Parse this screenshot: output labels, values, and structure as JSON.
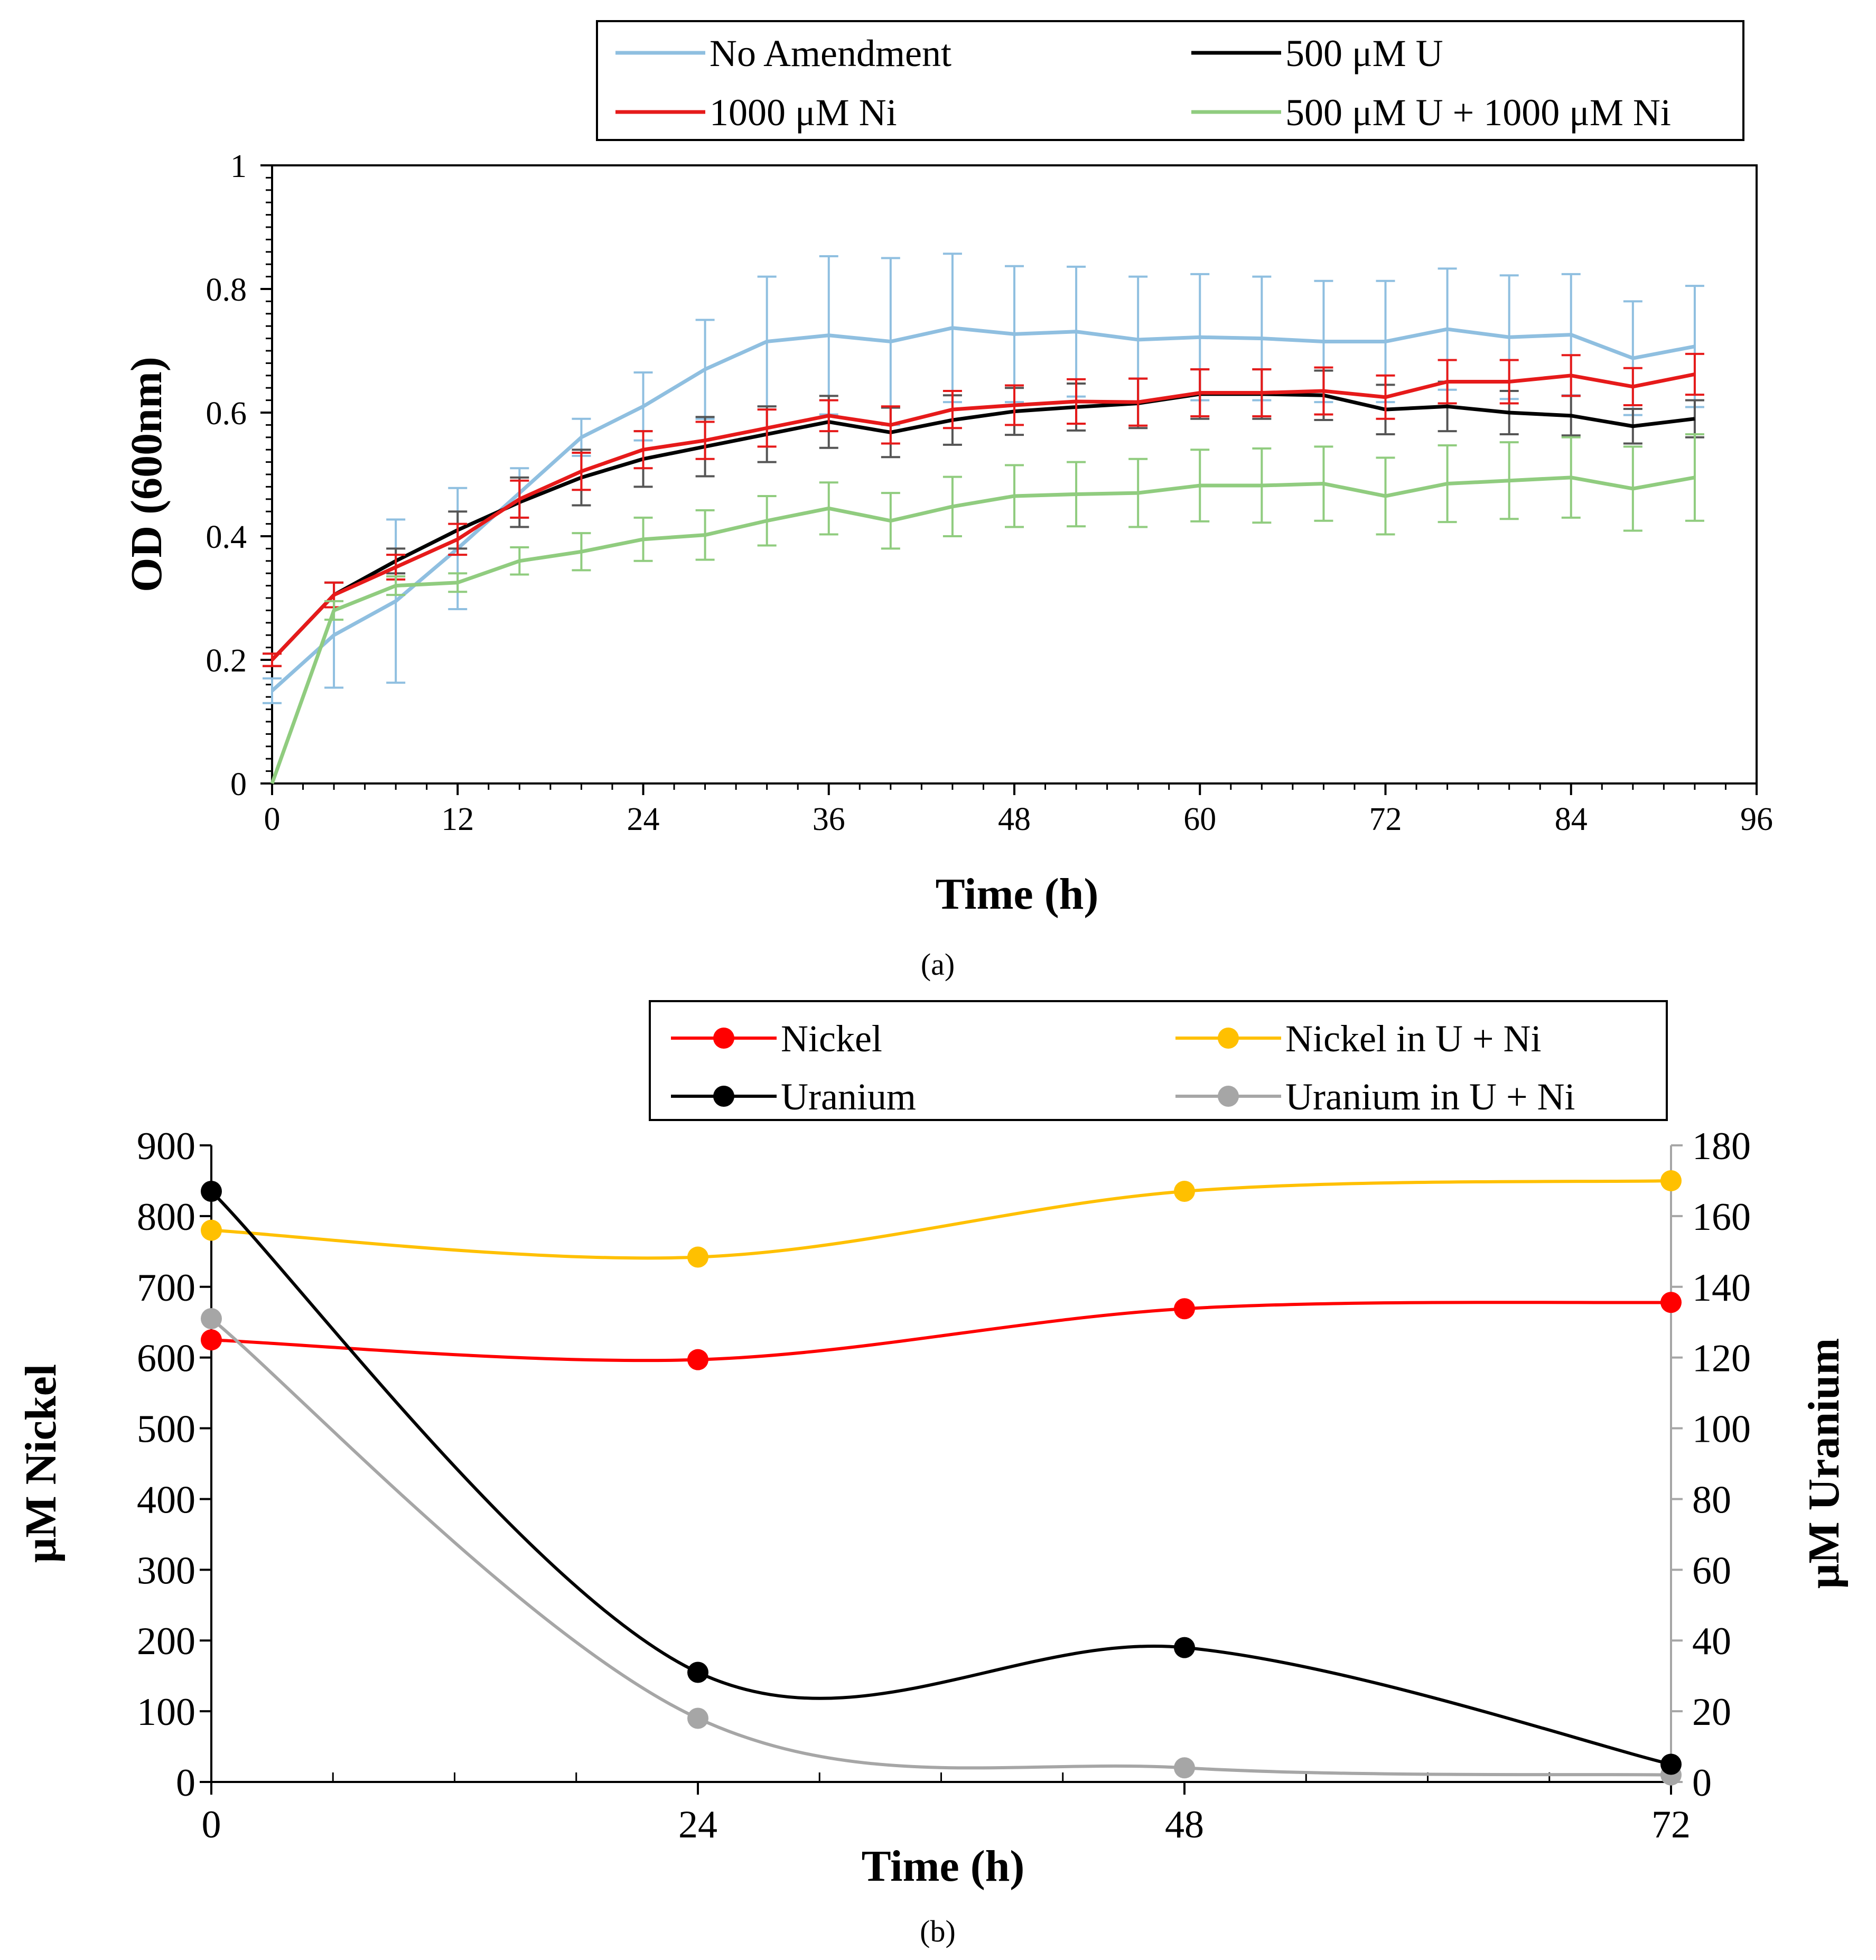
{
  "figure": {
    "panel_a_label": "(a)",
    "panel_b_label": "(b)"
  },
  "chart_data": [
    {
      "id": "a",
      "type": "line",
      "title": "",
      "xlabel": "Time (h)",
      "ylabel": "OD (600nm)",
      "xlim": [
        0,
        96
      ],
      "ylim": [
        0,
        1
      ],
      "xticks": [
        0,
        12,
        24,
        36,
        48,
        60,
        72,
        84,
        96
      ],
      "xtick_labels": [
        "0",
        "12",
        "24",
        "36",
        "48",
        "60",
        "72",
        "84",
        "96"
      ],
      "yticks": [
        0,
        0.2,
        0.4,
        0.6,
        0.8,
        1
      ],
      "ytick_labels": [
        "0",
        "0.2",
        "0.4",
        "0.6",
        "0.8",
        "1"
      ],
      "grid": false,
      "legend_position": "top",
      "x": [
        0,
        4,
        8,
        12,
        16,
        20,
        24,
        28,
        32,
        36,
        40,
        44,
        48,
        52,
        56,
        60,
        64,
        68,
        72,
        76,
        80,
        84,
        88,
        92
      ],
      "series": [
        {
          "name": "No Amendment",
          "color": "#8fbfe0",
          "values": [
            0.15,
            0.24,
            0.295,
            0.38,
            0.47,
            0.56,
            0.61,
            0.67,
            0.715,
            0.725,
            0.715,
            0.737,
            0.727,
            0.731,
            0.718,
            0.722,
            0.72,
            0.715,
            0.715,
            0.735,
            0.722,
            0.726,
            0.688,
            0.707
          ],
          "errors": [
            0.02,
            0.085,
            0.132,
            0.098,
            0.04,
            0.03,
            0.055,
            0.08,
            0.105,
            0.128,
            0.135,
            0.12,
            0.11,
            0.105,
            0.102,
            0.102,
            0.1,
            0.098,
            0.098,
            0.098,
            0.1,
            0.098,
            0.092,
            0.098
          ]
        },
        {
          "name": "500 μM U",
          "color": "#000000",
          "values": [
            0.2,
            0.305,
            0.36,
            0.41,
            0.455,
            0.495,
            0.525,
            0.545,
            0.565,
            0.585,
            0.568,
            0.588,
            0.602,
            0.609,
            0.615,
            0.63,
            0.63,
            0.628,
            0.605,
            0.61,
            0.6,
            0.595,
            0.578,
            0.59
          ],
          "errors": [
            0.01,
            0.02,
            0.02,
            0.03,
            0.04,
            0.045,
            0.045,
            0.048,
            0.045,
            0.042,
            0.04,
            0.04,
            0.038,
            0.038,
            0.04,
            0.04,
            0.04,
            0.04,
            0.04,
            0.04,
            0.035,
            0.032,
            0.028,
            0.03
          ]
        },
        {
          "name": "1000 μM Ni",
          "color": "#e61a1a",
          "values": [
            0.2,
            0.305,
            0.35,
            0.395,
            0.46,
            0.505,
            0.54,
            0.555,
            0.575,
            0.595,
            0.58,
            0.605,
            0.612,
            0.618,
            0.617,
            0.632,
            0.632,
            0.635,
            0.625,
            0.65,
            0.65,
            0.66,
            0.642,
            0.662
          ],
          "errors": [
            0.01,
            0.02,
            0.02,
            0.025,
            0.03,
            0.03,
            0.03,
            0.03,
            0.03,
            0.025,
            0.03,
            0.03,
            0.032,
            0.036,
            0.038,
            0.038,
            0.038,
            0.038,
            0.035,
            0.035,
            0.035,
            0.033,
            0.03,
            0.033
          ]
        },
        {
          "name": "500 μM U + 1000 μM Ni",
          "color": "#90cc7f",
          "values": [
            0,
            0.28,
            0.32,
            0.325,
            0.36,
            0.375,
            0.395,
            0.402,
            0.425,
            0.445,
            0.425,
            0.448,
            0.465,
            0.468,
            0.47,
            0.482,
            0.482,
            0.485,
            0.465,
            0.485,
            0.49,
            0.495,
            0.477,
            0.495
          ],
          "errors": [
            0,
            0.015,
            0.015,
            0.015,
            0.022,
            0.03,
            0.035,
            0.04,
            0.04,
            0.042,
            0.045,
            0.048,
            0.05,
            0.052,
            0.055,
            0.058,
            0.06,
            0.06,
            0.062,
            0.062,
            0.062,
            0.065,
            0.068,
            0.07
          ]
        }
      ]
    },
    {
      "id": "b",
      "type": "line",
      "title": "",
      "xlabel": "Time (h)",
      "ylabel_left": "μM Nickel",
      "ylabel_right": "μM Uranium",
      "xlim": [
        0,
        72
      ],
      "ylim_left": [
        0,
        900
      ],
      "ylim_right": [
        0,
        180
      ],
      "xticks": [
        0,
        24,
        48,
        72
      ],
      "xtick_labels": [
        "0",
        "24",
        "48",
        "72"
      ],
      "yticks_left": [
        0,
        100,
        200,
        300,
        400,
        500,
        600,
        700,
        800,
        900
      ],
      "ytick_labels_left": [
        "0",
        "100",
        "200",
        "300",
        "400",
        "500",
        "600",
        "700",
        "800",
        "900"
      ],
      "yticks_right": [
        0,
        20,
        40,
        60,
        80,
        100,
        120,
        140,
        160,
        180
      ],
      "ytick_labels_right": [
        "0",
        "20",
        "40",
        "60",
        "80",
        "100",
        "120",
        "140",
        "160",
        "180"
      ],
      "grid": false,
      "legend_position": "top",
      "x": [
        0,
        24,
        48,
        72
      ],
      "series": [
        {
          "name": "Nickel",
          "axis": "left",
          "color": "#ff0000",
          "values": [
            625,
            597,
            669,
            678
          ]
        },
        {
          "name": "Nickel in U + Ni",
          "axis": "left",
          "color": "#ffc000",
          "values": [
            780,
            742,
            835,
            850
          ]
        },
        {
          "name": "Uranium",
          "axis": "right",
          "color": "#000000",
          "values": [
            167,
            31,
            38,
            5
          ]
        },
        {
          "name": "Uranium in U + Ni",
          "axis": "right",
          "color": "#a6a6a6",
          "values": [
            131,
            18,
            4,
            2
          ]
        }
      ]
    }
  ]
}
